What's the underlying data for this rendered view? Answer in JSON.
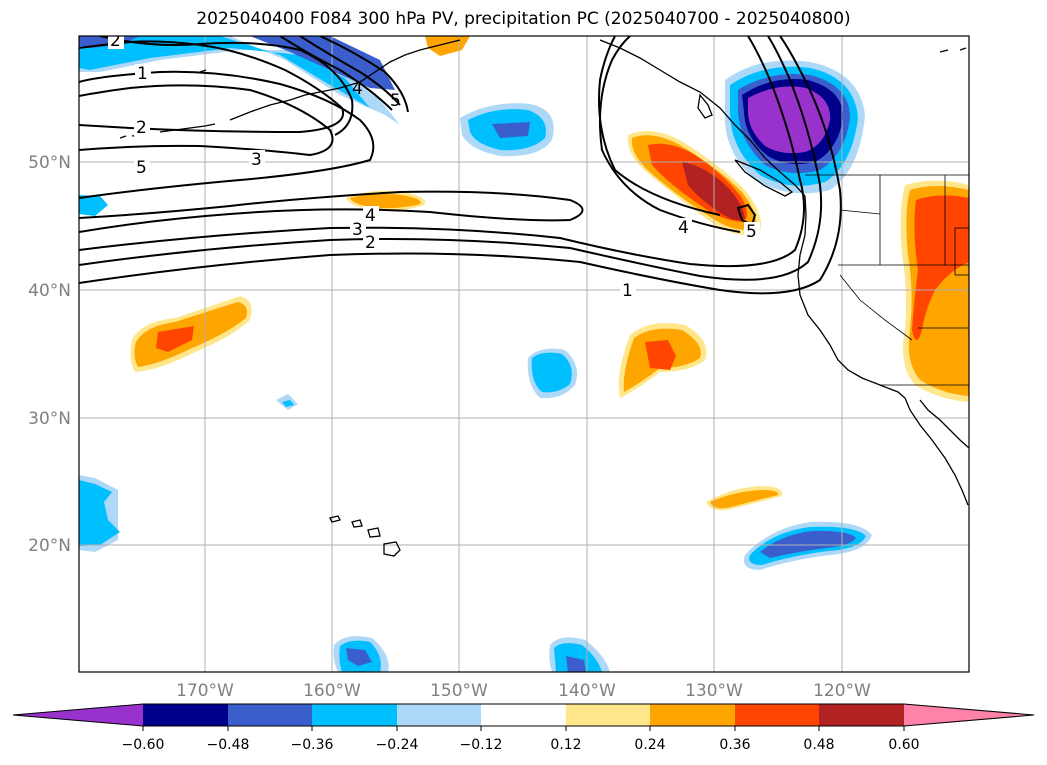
{
  "title": "2025040400 F084 300 hPa PV, precipitation PC (2025040700 - 2025040800)",
  "lat_labels": [
    "50°N",
    "40°N",
    "30°N",
    "20°N"
  ],
  "lon_labels": [
    "170°W",
    "160°W",
    "150°W",
    "140°W",
    "130°W",
    "120°W"
  ],
  "colorbar": {
    "ticks": [
      "−0.60",
      "−0.48",
      "−0.36",
      "−0.24",
      "−0.12",
      "0.12",
      "0.24",
      "0.36",
      "0.48",
      "0.60"
    ],
    "colors": [
      "#9932cc",
      "#00008b",
      "#3a5fcd",
      "#00bfff",
      "#add8f7",
      "#ffffff",
      "#ffe68a",
      "#ffa500",
      "#ff4500",
      "#b22222",
      "#ff82a8"
    ]
  },
  "pv_contour_labels": [
    "2",
    "1",
    "2",
    "5",
    "3",
    "4",
    "3",
    "2",
    "4",
    "5",
    "4",
    "5",
    "1"
  ]
}
